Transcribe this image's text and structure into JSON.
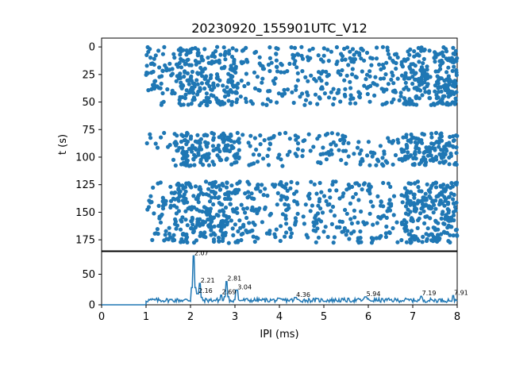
{
  "figure": {
    "title": "20230920_155901UTC_V12",
    "colors": {
      "series": "#1f77b4",
      "axes": "#000000",
      "background": "#ffffff"
    }
  },
  "chart_data": [
    {
      "type": "scatter",
      "panel": "top",
      "title": "20230920_155901UTC_V12",
      "xlabel": "",
      "ylabel": "t (s)",
      "xlim": [
        0,
        8
      ],
      "ylim": [
        185,
        -8
      ],
      "y_inverted": true,
      "yticks": [
        0,
        25,
        50,
        75,
        100,
        125,
        150,
        175
      ],
      "x_shared_with": "bottom",
      "point_bands_note_excluded": true,
      "bands": [
        {
          "t_range": [
            0,
            15
          ],
          "ipi_range": [
            1.0,
            8.0
          ]
        },
        {
          "t_range": [
            15,
            40
          ],
          "ipi_range": [
            1.0,
            8.0
          ]
        },
        {
          "t_range": [
            40,
            53
          ],
          "ipi_range": [
            1.3,
            8.0
          ]
        },
        {
          "t_range": [
            78,
            92
          ],
          "ipi_range": [
            1.0,
            8.0
          ]
        },
        {
          "t_range": [
            92,
            108
          ],
          "ipi_range": [
            1.8,
            8.0
          ]
        },
        {
          "t_range": [
            122,
            178
          ],
          "ipi_range": [
            1.0,
            8.0
          ]
        }
      ],
      "dense_ipi_ranges": [
        [
          1.6,
          3.1
        ],
        [
          6.8,
          8.0
        ]
      ]
    },
    {
      "type": "line",
      "panel": "bottom",
      "title": "",
      "xlabel": "IPI (ms)",
      "ylabel": "",
      "xlim": [
        0,
        8
      ],
      "ylim": [
        0,
        87
      ],
      "xticks": [
        0,
        1,
        2,
        3,
        4,
        5,
        6,
        7,
        8
      ],
      "yticks": [
        0,
        50
      ],
      "baseline_start_x": 1.0,
      "peaks": [
        {
          "x": 2.07,
          "y": 80,
          "label": "2.07"
        },
        {
          "x": 2.21,
          "y": 35,
          "label": "2.21"
        },
        {
          "x": 2.16,
          "y": 18,
          "label": "2.16"
        },
        {
          "x": 2.81,
          "y": 38,
          "label": "2.81"
        },
        {
          "x": 2.69,
          "y": 16,
          "label": "2.69"
        },
        {
          "x": 3.04,
          "y": 24,
          "label": "3.04"
        },
        {
          "x": 5.94,
          "y": 13,
          "label": "5.94"
        },
        {
          "x": 7.19,
          "y": 14,
          "label": "7.19"
        },
        {
          "x": 7.91,
          "y": 15,
          "label": "7.91"
        },
        {
          "x": 4.36,
          "y": 12,
          "label": "4.36"
        }
      ]
    }
  ]
}
